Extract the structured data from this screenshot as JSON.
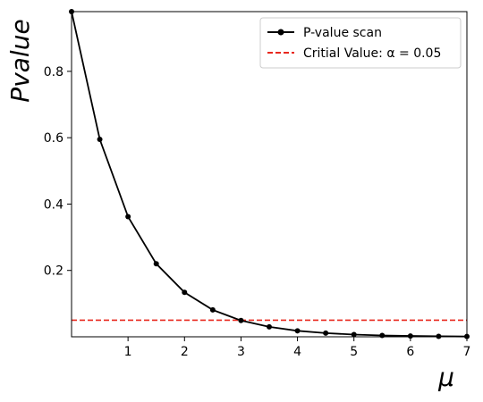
{
  "chart_data": {
    "type": "line",
    "xlabel": "μ",
    "ylabel": "Pvalue",
    "xlim": [
      0,
      7
    ],
    "ylim": [
      0,
      0.98
    ],
    "xticks": [
      1,
      2,
      3,
      4,
      5,
      6,
      7
    ],
    "yticks": [
      0.2,
      0.4,
      0.6,
      0.8
    ],
    "grid": false,
    "legend_position": "top-right",
    "series": [
      {
        "name": "P-value scan",
        "color": "#000000",
        "style": "solid",
        "marker": "circle",
        "x": [
          0,
          0.5,
          1,
          1.5,
          2,
          2.5,
          3,
          3.5,
          4,
          4.5,
          5,
          5.5,
          6,
          6.5,
          7
        ],
        "y": [
          0.98,
          0.595,
          0.362,
          0.22,
          0.134,
          0.081,
          0.049,
          0.03,
          0.018,
          0.011,
          0.0067,
          0.0041,
          0.0025,
          0.0015,
          0.0009
        ]
      }
    ],
    "reference_lines": [
      {
        "name": "Critial Value: α = 0.05",
        "orientation": "horizontal",
        "value": 0.05,
        "color": "#e8281e",
        "style": "dashed"
      }
    ]
  }
}
